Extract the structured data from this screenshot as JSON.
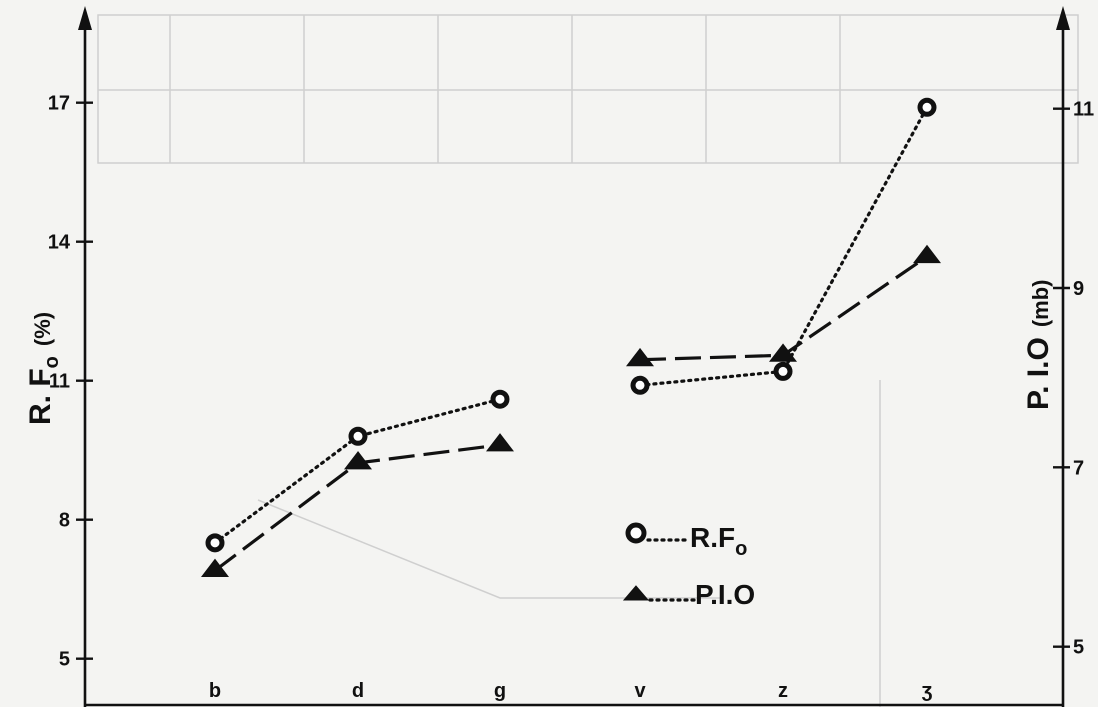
{
  "chart_data": {
    "type": "line",
    "categories": [
      "b",
      "d",
      "g",
      "v",
      "z",
      "ʒ"
    ],
    "left_axis": {
      "label_main": "R. F",
      "label_sub": "o",
      "label_unit": "(%)",
      "ticks": [
        5,
        8,
        11,
        14,
        17
      ],
      "ylim": [
        4,
        19
      ]
    },
    "right_axis": {
      "label": "P. I.O",
      "label_unit": "(mb)",
      "ticks": [
        5,
        7,
        9,
        11
      ],
      "ylim": [
        4.35,
        12.1
      ]
    },
    "series": [
      {
        "name_main": "R.F",
        "name_sub": "o",
        "axis": "left",
        "marker": "circle",
        "line": "dotted",
        "values": [
          7.5,
          9.8,
          10.6,
          null,
          null,
          16.9
        ],
        "segment_b": [
          10.9,
          11.2
        ]
      },
      {
        "name": "P.I.O",
        "axis": "right",
        "marker": "triangle",
        "line": "dashed",
        "values": [
          5.85,
          7.05,
          7.25,
          8.2,
          8.25,
          9.35
        ]
      }
    ],
    "grid": false,
    "legend_position": "center-right"
  }
}
